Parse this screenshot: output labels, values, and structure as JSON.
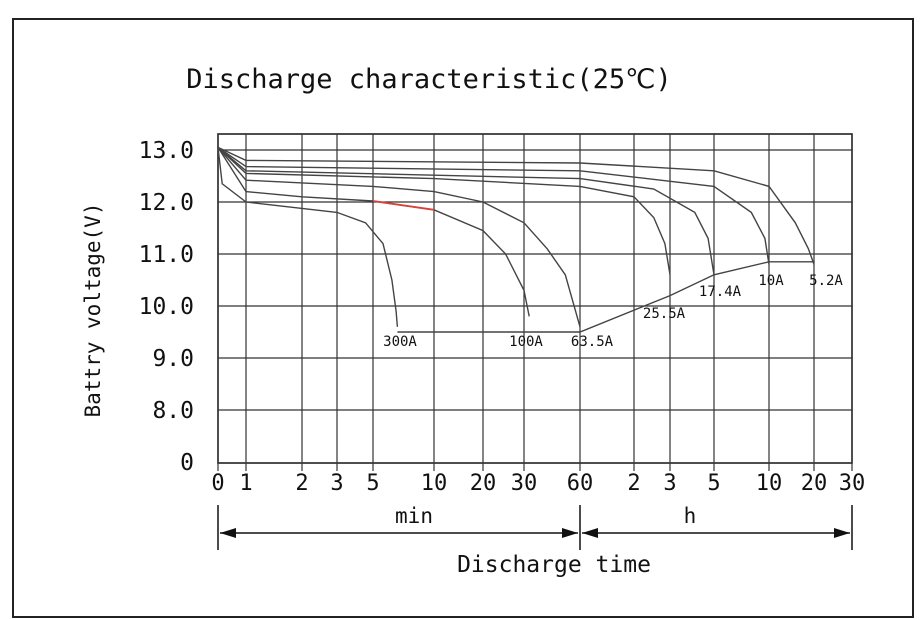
{
  "chart_data": {
    "type": "line",
    "title": "Discharge characteristic(25℃)",
    "xlabel": "Discharge time",
    "ylabel": "Battry voltage(V)",
    "y_ticks": [
      "13.0",
      "12.0",
      "11.0",
      "10.0",
      "9.0",
      "8.0",
      "0"
    ],
    "x_ticks": [
      "0",
      "1",
      "2",
      "3",
      "5",
      "10",
      "20",
      "30",
      "60",
      "2",
      "3",
      "5",
      "10",
      "20",
      "30"
    ],
    "unit_min": "min",
    "unit_h": "h",
    "grid": true,
    "series": [
      {
        "name": "300A",
        "color": "#444444",
        "points": [
          [
            0,
            13.05
          ],
          [
            0.15,
            12.35
          ],
          [
            1,
            12.0
          ],
          [
            3,
            11.8
          ],
          [
            4.5,
            11.6
          ],
          [
            5.6,
            11.2
          ],
          [
            6.2,
            10.5
          ],
          [
            6.5,
            9.9
          ],
          [
            6.6,
            9.6
          ]
        ]
      },
      {
        "name": "100A",
        "color": "#444444",
        "points": [
          [
            0,
            13.05
          ],
          [
            1,
            12.2
          ],
          [
            2,
            12.1
          ],
          [
            5,
            12.02
          ],
          [
            10,
            11.85
          ],
          [
            20,
            11.45
          ],
          [
            25,
            11.0
          ],
          [
            30,
            10.3
          ],
          [
            32,
            9.8
          ]
        ]
      },
      {
        "name": "63.5A",
        "color": "#444444",
        "points": [
          [
            0,
            13.05
          ],
          [
            1,
            12.42
          ],
          [
            5,
            12.3
          ],
          [
            10,
            12.2
          ],
          [
            20,
            12.0
          ],
          [
            30,
            11.6
          ],
          [
            40,
            11.1
          ],
          [
            50,
            10.6
          ],
          [
            60,
            9.6
          ]
        ]
      },
      {
        "name": "25.5A",
        "color": "#444444",
        "points": [
          [
            0,
            13.05
          ],
          [
            1,
            12.55
          ],
          [
            10,
            12.45
          ],
          [
            60,
            12.3
          ],
          [
            120,
            12.1
          ],
          [
            150,
            11.7
          ],
          [
            170,
            11.2
          ],
          [
            180,
            10.6
          ]
        ]
      },
      {
        "name": "17.4A",
        "color": "#444444",
        "points": [
          [
            0,
            13.05
          ],
          [
            1,
            12.6
          ],
          [
            60,
            12.45
          ],
          [
            150,
            12.25
          ],
          [
            240,
            11.8
          ],
          [
            280,
            11.3
          ],
          [
            300,
            10.6
          ]
        ]
      },
      {
        "name": "10A",
        "color": "#444444",
        "points": [
          [
            0,
            13.05
          ],
          [
            1,
            12.68
          ],
          [
            60,
            12.6
          ],
          [
            300,
            12.3
          ],
          [
            480,
            11.8
          ],
          [
            570,
            11.3
          ],
          [
            600,
            10.8
          ]
        ]
      },
      {
        "name": "5.2A",
        "color": "#444444",
        "points": [
          [
            0,
            13.05
          ],
          [
            1,
            12.8
          ],
          [
            60,
            12.75
          ],
          [
            300,
            12.6
          ],
          [
            600,
            12.3
          ],
          [
            900,
            11.6
          ],
          [
            1100,
            11.1
          ],
          [
            1200,
            10.8
          ]
        ]
      }
    ],
    "cutoff_line": [
      [
        6.6,
        9.5
      ],
      [
        60,
        9.5
      ],
      [
        180,
        10.2
      ],
      [
        300,
        10.6
      ],
      [
        600,
        10.85
      ],
      [
        1200,
        10.85
      ]
    ],
    "red_segment": [
      [
        5,
        12.02
      ],
      [
        10,
        11.85
      ]
    ]
  }
}
